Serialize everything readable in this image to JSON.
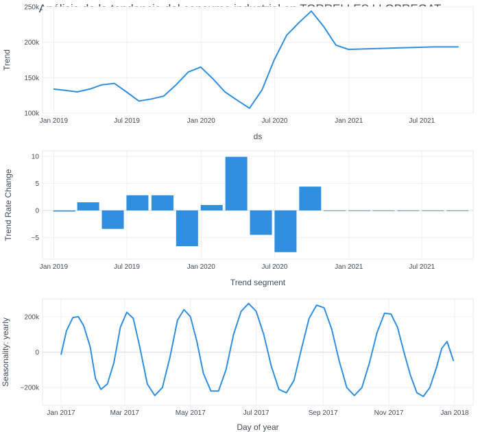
{
  "title": "Análisis de la tendencia del consumo industrial en TORRELLES LLOBREGAT",
  "chart_data": [
    {
      "type": "line",
      "xlabel": "ds",
      "ylabel": "Trend",
      "x_ticks": [
        "Jan 2019",
        "Jul 2019",
        "Jan 2020",
        "Jul 2020",
        "Jan 2021",
        "Jul 2021"
      ],
      "y_ticks": [
        "100k",
        "150k",
        "200k",
        "250k"
      ],
      "ylim": [
        100000,
        250000
      ],
      "color": "#2f8ee0",
      "x": [
        "2018-12-31",
        "2019-01-31",
        "2019-02-28",
        "2019-03-31",
        "2019-04-30",
        "2019-05-31",
        "2019-06-30",
        "2019-07-31",
        "2019-08-31",
        "2019-09-30",
        "2019-10-31",
        "2019-11-30",
        "2019-12-31",
        "2020-01-31",
        "2020-02-29",
        "2020-03-31",
        "2020-04-30",
        "2020-05-31",
        "2020-06-30",
        "2020-07-31",
        "2020-08-31",
        "2020-09-30",
        "2020-10-31",
        "2020-11-30",
        "2020-12-31",
        "2021-01-31",
        "2021-02-28",
        "2021-03-31",
        "2021-04-30",
        "2021-05-31",
        "2021-06-30",
        "2021-07-31",
        "2021-08-31",
        "2021-09-30"
      ],
      "y": [
        134000,
        132000,
        130000,
        134000,
        140000,
        142000,
        130000,
        117000,
        120000,
        124000,
        140000,
        158000,
        165000,
        148000,
        130000,
        118000,
        107000,
        133000,
        175000,
        210000,
        228000,
        244000,
        222000,
        196000,
        190000,
        190500,
        191000,
        191500,
        192000,
        192500,
        193000,
        193500,
        193500,
        193500
      ]
    },
    {
      "type": "bar",
      "xlabel": "Trend segment",
      "ylabel": "Trend Rate Change",
      "x_ticks": [
        "Jan 2019",
        "Jul 2019",
        "Jan 2020",
        "Jul 2020",
        "Jan 2021",
        "Jul 2021"
      ],
      "y_ticks": [
        "−5",
        "0",
        "5",
        "10"
      ],
      "ylim": [
        -9,
        11
      ],
      "color": "#2f8ee0",
      "x": [
        "2018-12-31",
        "2019-02-28",
        "2019-04-30",
        "2019-06-30",
        "2019-08-31",
        "2019-10-31",
        "2019-12-31",
        "2020-03-01",
        "2020-05-01",
        "2020-07-01",
        "2020-08-31",
        "2020-10-31",
        "2020-12-31",
        "2021-03-01",
        "2021-05-01",
        "2021-07-01",
        "2021-08-31"
      ],
      "values": [
        -0.2,
        1.5,
        -3.4,
        2.8,
        2.8,
        -6.6,
        1.0,
        9.9,
        -4.5,
        -7.7,
        4.4,
        0,
        0,
        0,
        0,
        0,
        0
      ]
    },
    {
      "type": "line",
      "xlabel": "Day of year",
      "ylabel": "Seasonality: yearly",
      "x_ticks": [
        "Jan 2017",
        "Mar 2017",
        "May 2017",
        "Jul 2017",
        "Sep 2017",
        "Nov 2017",
        "Jan 2018"
      ],
      "y_ticks": [
        "−200k",
        "0",
        "200k"
      ],
      "ylim": [
        -300000,
        300000
      ],
      "color": "#2f8ee0",
      "day_of_year": [
        0,
        5,
        11,
        16,
        21,
        27,
        32,
        37,
        43,
        49,
        55,
        61,
        67,
        73,
        80,
        87,
        94,
        101,
        108,
        114,
        120,
        126,
        132,
        139,
        146,
        153,
        160,
        167,
        174,
        181,
        188,
        195,
        202,
        209,
        216,
        223,
        230,
        237,
        244,
        251,
        258,
        265,
        272,
        279,
        286,
        293,
        300,
        306,
        312,
        318,
        324,
        330,
        336,
        342,
        348,
        353,
        358,
        364
      ],
      "values": [
        -15000,
        120000,
        195000,
        200000,
        150000,
        30000,
        -150000,
        -210000,
        -180000,
        -60000,
        140000,
        225000,
        190000,
        30000,
        -180000,
        -245000,
        -200000,
        -30000,
        180000,
        240000,
        200000,
        60000,
        -120000,
        -220000,
        -220000,
        -100000,
        100000,
        230000,
        275000,
        230000,
        100000,
        -80000,
        -210000,
        -230000,
        -160000,
        20000,
        190000,
        265000,
        250000,
        130000,
        -50000,
        -200000,
        -245000,
        -200000,
        -60000,
        110000,
        220000,
        215000,
        140000,
        0,
        -130000,
        -230000,
        -250000,
        -200000,
        -90000,
        20000,
        60000,
        -50000
      ]
    }
  ]
}
